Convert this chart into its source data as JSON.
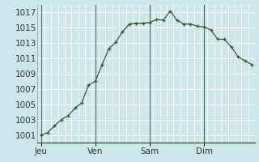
{
  "background_color": "#cce8ed",
  "line_color": "#2d5a2d",
  "marker_color": "#2d5a2d",
  "grid_color": "#ffffff",
  "day_line_color": "#4a6a6a",
  "axis_color": "#3a6a3a",
  "ylim": [
    1000,
    1018
  ],
  "yticks": [
    1001,
    1003,
    1005,
    1007,
    1009,
    1011,
    1013,
    1015,
    1017
  ],
  "day_labels": [
    "Jeu",
    "Ven",
    "Sam",
    "Dim"
  ],
  "day_positions": [
    0,
    8,
    16,
    24
  ],
  "x_all": [
    0,
    1,
    2,
    3,
    4,
    5,
    6,
    7,
    8,
    9,
    10,
    11,
    12,
    13,
    14,
    15,
    16,
    17,
    18,
    19,
    20,
    21,
    22,
    23,
    24,
    25,
    26,
    27,
    28,
    29,
    30,
    31
  ],
  "y_all": [
    1001.0,
    1001.3,
    1002.2,
    1003.0,
    1003.5,
    1004.5,
    1005.2,
    1007.5,
    1008.0,
    1010.2,
    1012.3,
    1013.1,
    1014.5,
    1015.5,
    1015.6,
    1015.6,
    1015.7,
    1016.1,
    1016.0,
    1017.2,
    1016.0,
    1015.5,
    1015.5,
    1015.2,
    1015.1,
    1014.7,
    1013.5,
    1013.5,
    1012.5,
    1011.2,
    1010.7,
    1010.2
  ],
  "xlim": [
    -0.5,
    31.5
  ],
  "font_size": 7.5
}
